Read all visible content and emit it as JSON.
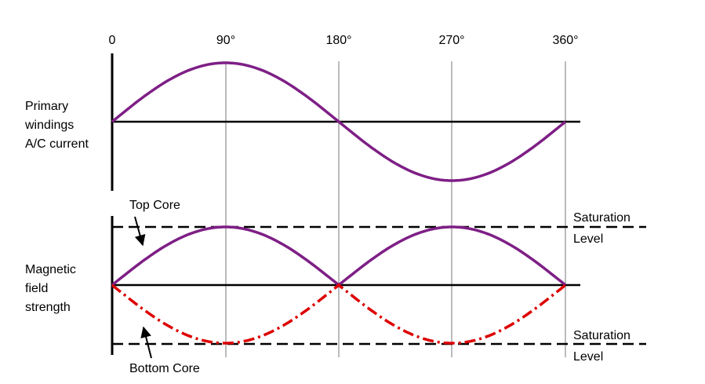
{
  "axis_labels": [
    "0",
    "90°",
    "180°",
    "270°",
    "360°"
  ],
  "panels": {
    "primary": {
      "label_lines": [
        "Primary",
        "windings",
        "A/C current"
      ]
    },
    "magnetic": {
      "label_lines": [
        "Magnetic",
        "field",
        "strength"
      ]
    }
  },
  "saturation_label": {
    "line1": "Saturation",
    "line2": "Level"
  },
  "callouts": {
    "top_core": "Top Core",
    "bottom_core": "Bottom Core"
  },
  "colors": {
    "purple_curve": "#7e1f86",
    "red_curve": "#dd0000",
    "axis": "#000000",
    "gridline": "#777777"
  },
  "curves": {
    "primary_current": "sine",
    "top_core": "absolute sine",
    "bottom_core": "negated absolute sine"
  }
}
